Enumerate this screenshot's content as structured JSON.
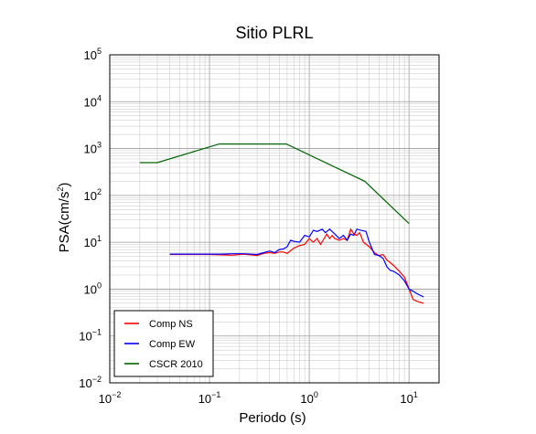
{
  "chart_data": {
    "type": "line",
    "title": "Sitio PLRL",
    "xlabel": "Periodo (s)",
    "ylabel": "PSA(cm/s",
    "ylabel_sup": "2",
    "ylabel_end": ")",
    "x_scale": "log",
    "y_scale": "log",
    "xlim": [
      0.01,
      20
    ],
    "ylim": [
      0.01,
      100000
    ],
    "x_ticks": [
      {
        "base": "10",
        "exp": "−2",
        "value": 0.01
      },
      {
        "base": "10",
        "exp": "−1",
        "value": 0.1
      },
      {
        "base": "10",
        "exp": "0",
        "value": 1
      },
      {
        "base": "10",
        "exp": "1",
        "value": 10
      }
    ],
    "y_ticks": [
      {
        "base": "10",
        "exp": "−2",
        "value": 0.01
      },
      {
        "base": "10",
        "exp": "−1",
        "value": 0.1
      },
      {
        "base": "10",
        "exp": "0",
        "value": 1
      },
      {
        "base": "10",
        "exp": "1",
        "value": 10
      },
      {
        "base": "10",
        "exp": "2",
        "value": 100
      },
      {
        "base": "10",
        "exp": "3",
        "value": 1000
      },
      {
        "base": "10",
        "exp": "4",
        "value": 10000
      },
      {
        "base": "10",
        "exp": "5",
        "value": 100000
      }
    ],
    "grid": true,
    "legend_position": "bottom-left",
    "series": [
      {
        "name": "Comp NS",
        "color": "#ff0000",
        "points": [
          [
            0.04,
            5.5
          ],
          [
            0.06,
            5.5
          ],
          [
            0.08,
            5.5
          ],
          [
            0.1,
            5.5
          ],
          [
            0.13,
            5.4
          ],
          [
            0.17,
            5.3
          ],
          [
            0.22,
            5.6
          ],
          [
            0.3,
            5.2
          ],
          [
            0.35,
            5.8
          ],
          [
            0.4,
            6.0
          ],
          [
            0.45,
            5.8
          ],
          [
            0.5,
            6.2
          ],
          [
            0.55,
            6.2
          ],
          [
            0.6,
            5.8
          ],
          [
            0.7,
            7.5
          ],
          [
            0.8,
            8.5
          ],
          [
            0.9,
            9.0
          ],
          [
            1.0,
            12.0
          ],
          [
            1.1,
            10.0
          ],
          [
            1.2,
            12.0
          ],
          [
            1.3,
            9.0
          ],
          [
            1.5,
            15.0
          ],
          [
            1.6,
            12.0
          ],
          [
            1.7,
            14.0
          ],
          [
            1.8,
            12.0
          ],
          [
            2.0,
            11.0
          ],
          [
            2.2,
            12.0
          ],
          [
            2.4,
            11.0
          ],
          [
            2.6,
            19.0
          ],
          [
            2.8,
            15.0
          ],
          [
            3.0,
            14.0
          ],
          [
            3.2,
            16.0
          ],
          [
            3.5,
            10.0
          ],
          [
            4.0,
            8.0
          ],
          [
            4.5,
            6.0
          ],
          [
            5.0,
            5.2
          ],
          [
            5.5,
            5.5
          ],
          [
            6.0,
            4.2
          ],
          [
            7.0,
            3.2
          ],
          [
            8.0,
            2.4
          ],
          [
            9.0,
            1.8
          ],
          [
            10.0,
            1.0
          ],
          [
            11.0,
            0.6
          ],
          [
            12.0,
            0.55
          ],
          [
            14.0,
            0.5
          ]
        ]
      },
      {
        "name": "Comp EW",
        "color": "#0000ff",
        "points": [
          [
            0.04,
            5.6
          ],
          [
            0.06,
            5.6
          ],
          [
            0.08,
            5.6
          ],
          [
            0.1,
            5.6
          ],
          [
            0.13,
            5.6
          ],
          [
            0.17,
            5.7
          ],
          [
            0.22,
            5.7
          ],
          [
            0.3,
            5.5
          ],
          [
            0.35,
            6.0
          ],
          [
            0.4,
            6.5
          ],
          [
            0.45,
            6.0
          ],
          [
            0.5,
            7.0
          ],
          [
            0.55,
            7.2
          ],
          [
            0.6,
            8.0
          ],
          [
            0.65,
            11.0
          ],
          [
            0.7,
            10.5
          ],
          [
            0.8,
            10.0
          ],
          [
            0.9,
            14.0
          ],
          [
            1.0,
            13.0
          ],
          [
            1.1,
            18.0
          ],
          [
            1.2,
            17.0
          ],
          [
            1.35,
            19.0
          ],
          [
            1.45,
            16.0
          ],
          [
            1.6,
            19.0
          ],
          [
            1.8,
            15.0
          ],
          [
            2.0,
            12.0
          ],
          [
            2.2,
            14.0
          ],
          [
            2.4,
            11.0
          ],
          [
            2.6,
            15.0
          ],
          [
            2.8,
            14.0
          ],
          [
            3.0,
            19.0
          ],
          [
            3.3,
            18.0
          ],
          [
            3.7,
            17.0
          ],
          [
            4.0,
            10.0
          ],
          [
            4.5,
            5.5
          ],
          [
            5.0,
            5.2
          ],
          [
            5.5,
            4.5
          ],
          [
            6.0,
            3.0
          ],
          [
            6.5,
            2.5
          ],
          [
            7.0,
            2.4
          ],
          [
            8.0,
            2.0
          ],
          [
            9.0,
            1.5
          ],
          [
            10.0,
            1.0
          ],
          [
            11.0,
            0.9
          ],
          [
            12.0,
            0.8
          ],
          [
            14.0,
            0.68
          ]
        ]
      },
      {
        "name": "CSCR 2010",
        "color": "#006400",
        "points": [
          [
            0.02,
            500
          ],
          [
            0.03,
            500
          ],
          [
            0.125,
            1250
          ],
          [
            0.59,
            1250
          ],
          [
            3.6,
            200
          ],
          [
            10.0,
            25
          ]
        ]
      }
    ]
  }
}
